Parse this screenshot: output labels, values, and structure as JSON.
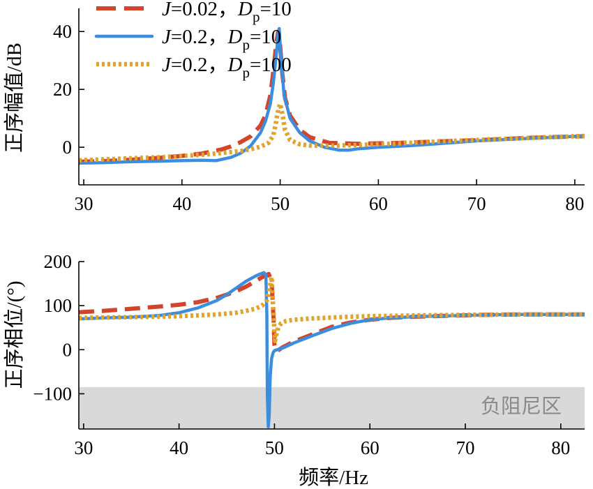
{
  "chart_data": [
    {
      "type": "line",
      "name": "magnitude",
      "ylabel": "正序幅值/dB",
      "xlabel": "",
      "xlim": [
        29.5,
        81
      ],
      "ylim": [
        -13,
        48
      ],
      "xticks": [
        30,
        40,
        50,
        60,
        70,
        80
      ],
      "yticks": [
        0,
        20,
        40
      ],
      "xtick_labels": [
        "30",
        "40",
        "50",
        "60",
        "70",
        "80"
      ],
      "ytick_labels": [
        "0",
        "20",
        "40"
      ],
      "legend": {
        "position": "top-left",
        "entries": [
          {
            "italic": "J",
            "eq": "=0.02，",
            "D": "D",
            "sub": "p",
            "val": "=10"
          },
          {
            "italic": "J",
            "eq": "=0.2，",
            "D": "D",
            "sub": "p",
            "val": "=10"
          },
          {
            "italic": "J",
            "eq": "=0.2，",
            "D": "D",
            "sub": "p",
            "val": "=100"
          }
        ]
      },
      "series": [
        {
          "name": "J=0.02，Dp=10",
          "color": "#d2452a",
          "style": "dashed",
          "x": [
            29.5,
            32,
            35,
            38,
            40,
            42,
            44,
            45,
            46,
            47,
            48,
            48.5,
            49,
            49.3,
            49.6,
            49.8,
            50,
            50.2,
            50.5,
            51,
            52,
            53,
            55,
            58,
            62,
            66,
            70,
            75,
            81
          ],
          "y": [
            -5,
            -4.8,
            -4.3,
            -3.6,
            -3,
            -2.2,
            -0.8,
            0.3,
            1.8,
            3.8,
            7.5,
            11,
            18,
            26,
            36,
            40,
            35,
            26,
            17,
            11,
            6,
            3.5,
            1.5,
            1.2,
            1.5,
            2,
            2.4,
            3.2,
            3.8
          ]
        },
        {
          "name": "J=0.2，Dp=10",
          "color": "#3b8de0",
          "style": "solid",
          "x": [
            29.5,
            32,
            35,
            38,
            40,
            42,
            43.5,
            45,
            46,
            47,
            48,
            48.5,
            49,
            49.3,
            49.6,
            49.8,
            49.9,
            50.1,
            50.4,
            51,
            52,
            53,
            54.5,
            56,
            57,
            58,
            60,
            63,
            66,
            70,
            75,
            81
          ],
          "y": [
            -5.5,
            -5.3,
            -5,
            -4.8,
            -4.6,
            -4.5,
            -4.6,
            -3.5,
            -2,
            0.5,
            5,
            9,
            15,
            22,
            32,
            39,
            41,
            30,
            18,
            10,
            5,
            2.2,
            0,
            -1,
            -1,
            -0.5,
            0,
            0.5,
            1.2,
            2.2,
            3,
            3.9
          ]
        },
        {
          "name": "J=0.2，Dp=100",
          "color": "#e3a32a",
          "style": "dotted",
          "x": [
            29.5,
            32,
            35,
            38,
            40,
            42,
            44,
            46,
            47,
            48,
            48.8,
            49.3,
            49.6,
            49.8,
            50,
            50.2,
            50.5,
            51,
            52,
            53,
            55,
            58,
            62,
            66,
            70,
            75,
            81
          ],
          "y": [
            -4.5,
            -4.2,
            -3.8,
            -3.4,
            -3,
            -2.6,
            -2,
            -1.3,
            -0.7,
            0.2,
            1.5,
            4,
            9,
            13,
            15,
            12,
            6,
            2.5,
            1,
            0.6,
            0.5,
            0.8,
            1.3,
            2,
            2.5,
            3.2,
            3.9
          ]
        }
      ]
    },
    {
      "type": "line",
      "name": "phase",
      "ylabel": "正序相位/(°)",
      "xlabel": "频率/Hz",
      "xlim": [
        29.5,
        82.5
      ],
      "ylim": [
        -180,
        200
      ],
      "xticks": [
        30,
        40,
        50,
        60,
        70,
        80
      ],
      "yticks": [
        -100,
        0,
        100,
        200
      ],
      "xtick_labels": [
        "30",
        "40",
        "50",
        "60",
        "70",
        "80"
      ],
      "ytick_labels": [
        "−100",
        "0",
        "100",
        "200"
      ],
      "shaded_region": {
        "label": "负阻尼区",
        "y_range": [
          -180,
          -85
        ],
        "color": "#d9d9d9"
      },
      "series": [
        {
          "name": "J=0.02，Dp=10",
          "color": "#d2452a",
          "style": "dashed",
          "x": [
            29.5,
            32,
            35,
            38,
            40,
            42,
            44,
            45,
            46,
            47,
            48,
            48.5,
            49,
            49.4,
            49.7,
            49.9,
            50,
            50.1,
            50.3,
            50.8,
            52,
            54,
            56,
            58,
            60,
            62,
            65,
            68,
            72,
            76,
            80,
            82.5
          ],
          "y": [
            85,
            88,
            93,
            98,
            102,
            108,
            118,
            125,
            133,
            143,
            155,
            162,
            168,
            172,
            155,
            70,
            10,
            -2,
            -3,
            5,
            18,
            35,
            52,
            62,
            68,
            72,
            75,
            77,
            79,
            80,
            80,
            80
          ]
        },
        {
          "name": "J=0.2，Dp=10",
          "color": "#3b8de0",
          "style": "solid",
          "x": [
            29.5,
            32,
            35,
            38,
            40,
            42,
            44,
            45,
            46,
            47,
            48,
            48.5,
            48.9,
            49.1,
            49.2,
            49.25,
            49.35,
            49.45,
            49.55,
            49.7,
            49.85,
            50,
            50.3,
            51,
            52,
            54,
            56,
            58,
            60,
            62,
            65,
            70,
            75,
            80,
            82.5
          ],
          "y": [
            70,
            72,
            74,
            78,
            84,
            95,
            112,
            125,
            140,
            155,
            167,
            172,
            175,
            170,
            80,
            -100,
            -175,
            -150,
            -60,
            -20,
            -7,
            -2,
            0,
            5,
            15,
            32,
            48,
            60,
            68,
            72,
            75,
            78,
            80,
            80,
            80
          ]
        },
        {
          "name": "J=0.2，Dp=100",
          "color": "#e3a32a",
          "style": "dotted",
          "x": [
            29.5,
            32,
            35,
            38,
            40,
            42,
            44,
            46,
            47,
            48,
            48.7,
            49.2,
            49.5,
            49.7,
            49.9,
            50.05,
            50.2,
            50.4,
            50.7,
            51.2,
            52,
            54,
            57,
            60,
            65,
            70,
            75,
            80,
            82.5
          ],
          "y": [
            72,
            73,
            74,
            75,
            76,
            78,
            80,
            84,
            88,
            93,
            100,
            112,
            140,
            165,
            80,
            20,
            35,
            50,
            60,
            65,
            68,
            71,
            74,
            76,
            78,
            79,
            80,
            80,
            80
          ]
        }
      ]
    }
  ]
}
